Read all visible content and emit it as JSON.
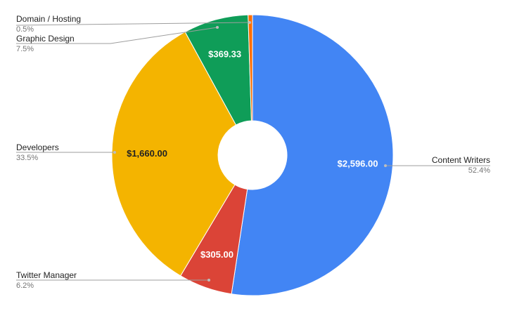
{
  "chart_data": {
    "type": "pie",
    "donut": true,
    "slices": [
      {
        "name": "Content Writers",
        "value": 2596.0,
        "value_label": "$2,596.00",
        "percent_label": "52.4%",
        "color": "#4285F4",
        "value_text_color": "#ffffff"
      },
      {
        "name": "Twitter Manager",
        "value": 305.0,
        "value_label": "$305.00",
        "percent_label": "6.2%",
        "color": "#DB4437",
        "value_text_color": "#ffffff"
      },
      {
        "name": "Developers",
        "value": 1660.0,
        "value_label": "$1,660.00",
        "percent_label": "33.5%",
        "color": "#F4B400",
        "value_text_color": "#222222"
      },
      {
        "name": "Graphic Design",
        "value": 369.33,
        "value_label": "$369.33",
        "percent_label": "7.5%",
        "color": "#0F9D58",
        "value_text_color": "#ffffff"
      },
      {
        "name": "Domain / Hosting",
        "value": 24.75,
        "value_label": "",
        "percent_label": "0.5%",
        "color": "#FF6D01",
        "value_text_color": "#ffffff"
      }
    ]
  }
}
